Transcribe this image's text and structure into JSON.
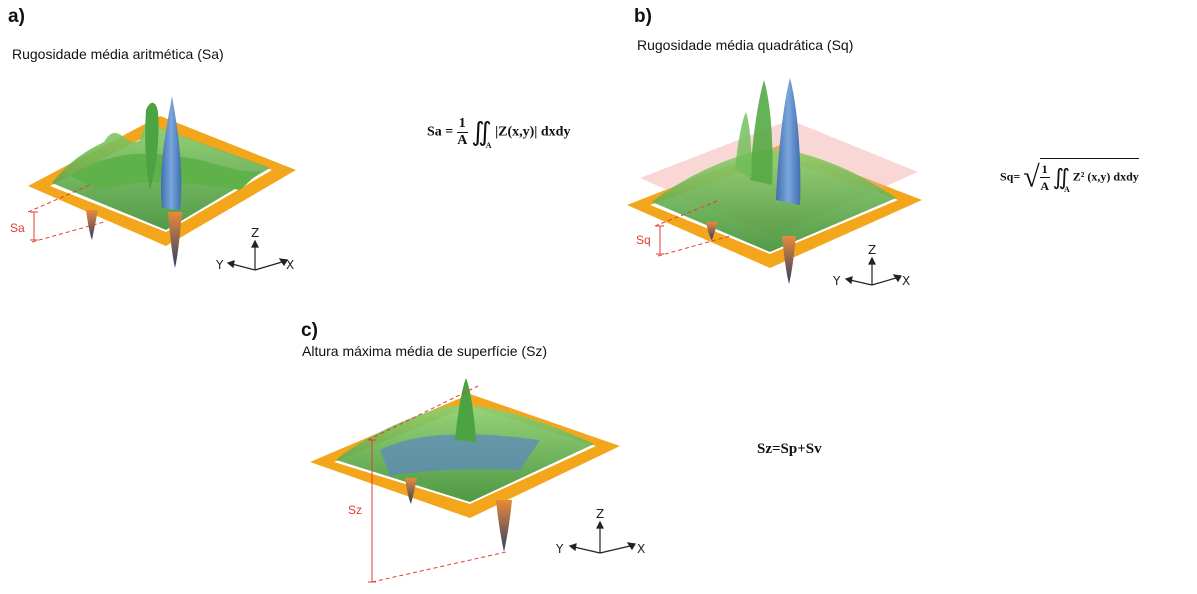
{
  "panels": [
    {
      "letter": "a)",
      "title": "Rugosidade média aritmética (Sa)",
      "symbol": "Sa",
      "formula": {
        "lhs": "Sa =",
        "frac_num": "1",
        "frac_den": "A",
        "integral": "∬",
        "sub": "A",
        "body": "|Z(x,y)| dxdy"
      }
    },
    {
      "letter": "b)",
      "title": "Rugosidade média quadrática (Sq)",
      "symbol": "Sq",
      "formula": {
        "lhs": "Sq=",
        "frac_num": "1",
        "frac_den": "A",
        "integral": "∬",
        "sub": "A",
        "body": "Z² (x,y) dxdy"
      }
    },
    {
      "letter": "c)",
      "title": "Altura máxima média de superfície (Sz)",
      "symbol": "Sz",
      "formula": {
        "text": "Sz=Sp+Sv"
      }
    }
  ],
  "axes": {
    "x": "X",
    "y": "Y",
    "z": "Z"
  },
  "colors": {
    "frame": "#f3a51c",
    "surface_green": "#5fb14a",
    "surface_blue": "#5a86c4",
    "peak_orange": "#e07a30",
    "marker_red": "#e03c31"
  }
}
